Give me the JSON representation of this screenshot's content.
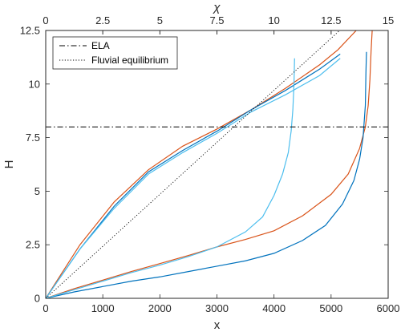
{
  "chart_data": {
    "type": "line",
    "xlabel": "x",
    "ylabel": "H",
    "x2label": "χ",
    "xlim": [
      0,
      6000
    ],
    "ylim": [
      0,
      12.5
    ],
    "x2lim": [
      0,
      15
    ],
    "xticks": [
      0,
      1000,
      2000,
      3000,
      4000,
      5000,
      6000
    ],
    "xtick_labels": [
      "0",
      "1000",
      "2000",
      "3000",
      "4000",
      "5000",
      "6000"
    ],
    "yticks": [
      0,
      2.5,
      5,
      7.5,
      10,
      12.5
    ],
    "ytick_labels": [
      "0",
      "2.5",
      "5",
      "7.5",
      "10",
      "12.5"
    ],
    "x2ticks": [
      0,
      2.5,
      5,
      7.5,
      10,
      12.5,
      15
    ],
    "x2tick_labels": [
      "0",
      "2.5",
      "5",
      "7.5",
      "10",
      "12.5",
      "15"
    ],
    "grid": false,
    "box": true,
    "legend_position": "top-left",
    "legend": [
      {
        "label": "ELA",
        "style": "dashdot",
        "color": "#000000"
      },
      {
        "label": "Fluvial equilibrium",
        "style": "dotted",
        "color": "#000000"
      }
    ],
    "reference_lines": {
      "ela": {
        "y": 8,
        "color": "#000000"
      },
      "fluvial_equilibrium": {
        "x": [
          0,
          5150
        ],
        "y": [
          0,
          12.5
        ],
        "color": "#000000"
      }
    },
    "series": [
      {
        "axis": "chi",
        "color": "#D95319",
        "x": [
          0,
          1.5,
          3,
          4.5,
          6,
          7.5,
          9,
          10.5,
          12,
          12.8,
          13.6
        ],
        "y": [
          0,
          2.5,
          4.5,
          6,
          7.1,
          7.9,
          8.8,
          9.8,
          10.9,
          11.6,
          12.5
        ]
      },
      {
        "axis": "chi",
        "color": "#0072BD",
        "x": [
          0,
          1.5,
          3,
          4.5,
          6,
          7.5,
          9,
          10.5,
          12,
          12.9
        ],
        "y": [
          0,
          2.3,
          4.3,
          5.9,
          6.9,
          7.8,
          8.8,
          9.7,
          10.7,
          11.4
        ]
      },
      {
        "axis": "chi",
        "color": "#4DBEEE",
        "x": [
          0,
          1.5,
          3,
          4.5,
          6,
          7.5,
          9,
          10.5,
          12,
          12.9
        ],
        "y": [
          0,
          2.3,
          4.2,
          5.8,
          6.8,
          7.7,
          8.7,
          9.5,
          10.4,
          11.2
        ]
      },
      {
        "axis": "x",
        "color": "#D95319",
        "x": [
          0,
          500,
          1000,
          1500,
          2000,
          2500,
          3000,
          3500,
          4000,
          4500,
          5000,
          5300,
          5500,
          5600,
          5650,
          5680,
          5700,
          5720
        ],
        "y": [
          0,
          0.45,
          0.85,
          1.25,
          1.62,
          2.0,
          2.4,
          2.75,
          3.15,
          3.85,
          4.85,
          5.8,
          7.0,
          8.0,
          9.0,
          10.2,
          11.5,
          12.5
        ]
      },
      {
        "axis": "x",
        "color": "#0072BD",
        "x": [
          0,
          500,
          1000,
          1500,
          2000,
          2500,
          3000,
          3500,
          4000,
          4500,
          4900,
          5200,
          5400,
          5500,
          5560,
          5600,
          5610,
          5620
        ],
        "y": [
          0,
          0.3,
          0.55,
          0.8,
          1.0,
          1.25,
          1.5,
          1.75,
          2.1,
          2.7,
          3.4,
          4.4,
          5.5,
          6.5,
          7.5,
          9.0,
          10.5,
          11.5
        ]
      },
      {
        "axis": "x",
        "color": "#4DBEEE",
        "x": [
          0,
          500,
          1000,
          1500,
          2000,
          2500,
          3000,
          3500,
          3800,
          4000,
          4150,
          4250,
          4300,
          4330,
          4350,
          4360
        ],
        "y": [
          0,
          0.4,
          0.8,
          1.2,
          1.55,
          1.95,
          2.4,
          3.1,
          3.8,
          4.8,
          5.8,
          6.8,
          7.8,
          8.8,
          10.0,
          11.2
        ]
      }
    ]
  }
}
